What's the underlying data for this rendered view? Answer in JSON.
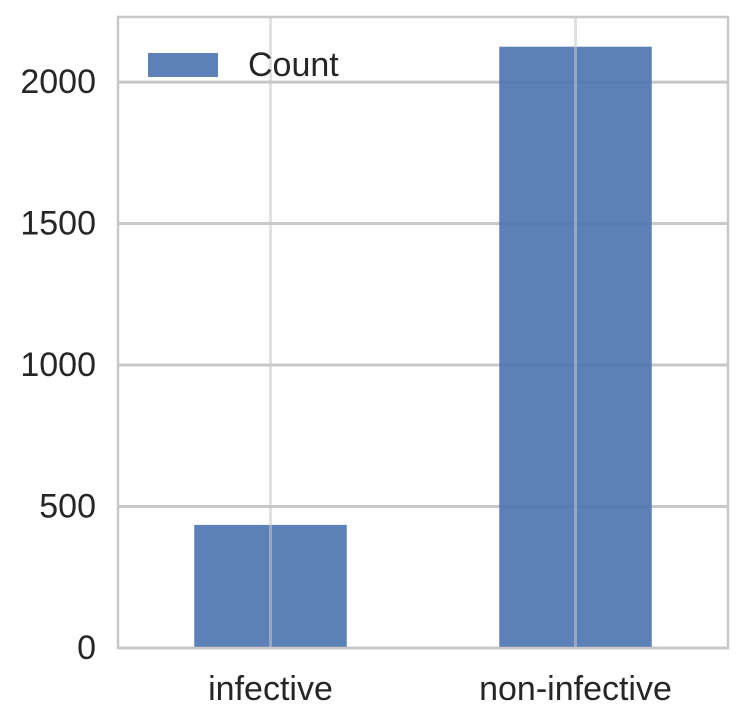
{
  "chart_data": {
    "type": "bar",
    "categories": [
      "infective",
      "non-infective"
    ],
    "series": [
      {
        "name": "Count",
        "values": [
          435,
          2125
        ]
      }
    ],
    "title": "",
    "xlabel": "",
    "ylabel": "",
    "ylim": [
      0,
      2230
    ],
    "yticks": [
      0,
      500,
      1000,
      1500,
      2000
    ],
    "grid": true,
    "legend": "top-left"
  },
  "colors": {
    "bar": "#4c72b0",
    "grid": "#c8c8c8",
    "frame": "#c8c8c8",
    "text": "#262626",
    "background": "#ffffff"
  }
}
